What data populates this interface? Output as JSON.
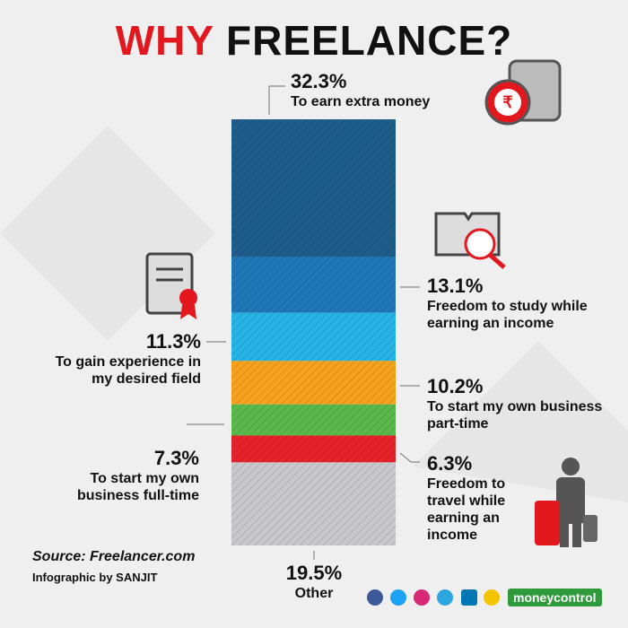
{
  "chart_data": {
    "type": "stacked-bar",
    "title": [
      "WHY",
      "FREELANCE?"
    ],
    "categories": [
      "To earn extra money",
      "Freedom to study while earning an income",
      "To gain experience in my desired field",
      "To start my own business part-time",
      "To start my own business full-time",
      "Freedom to travel while earning an income",
      "Other"
    ],
    "values": [
      32.3,
      13.1,
      11.3,
      10.2,
      7.3,
      6.3,
      19.5
    ],
    "value_labels": [
      "32.3%",
      "13.1%",
      "11.3%",
      "10.2%",
      "7.3%",
      "6.3%",
      "19.5%"
    ],
    "colors": [
      "#1e5d8c",
      "#1f77b8",
      "#27b4e6",
      "#f6a21c",
      "#5bb84b",
      "#e6232a",
      "#c8c8cc"
    ],
    "source": "Source: Freelancer.com",
    "credit": "Infographic by SANJIT",
    "brand": "moneycontrol"
  }
}
